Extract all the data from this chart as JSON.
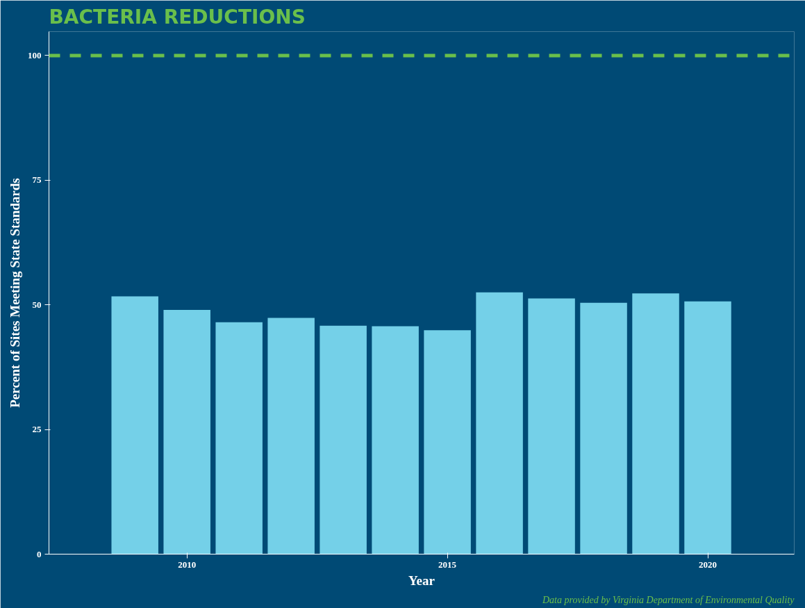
{
  "chart_data": {
    "type": "bar",
    "title": "BACTERIA REDUCTIONS",
    "xlabel": "Year",
    "ylabel": "Percent of Sites Meeting State Standards",
    "x": [
      2009,
      2010,
      2011,
      2012,
      2013,
      2014,
      2015,
      2016,
      2017,
      2018,
      2019,
      2020
    ],
    "values": [
      51.7,
      49.0,
      46.5,
      47.4,
      45.8,
      45.7,
      44.9,
      52.5,
      51.3,
      50.4,
      52.3,
      50.7
    ],
    "color": "#74d0e8",
    "xlim": [
      2007.35,
      2021.66
    ],
    "xticks": [
      2010,
      2015,
      2020
    ],
    "ylim": [
      0,
      104.8
    ],
    "yticks": [
      0,
      25,
      50,
      75,
      100
    ],
    "ref_lines": [
      {
        "axis": "y",
        "value": 100,
        "label": null,
        "color": "#6abf4b",
        "line_style": "dashed"
      }
    ],
    "annotations": [
      "Data provided by Virginia Department of Environmental Quality"
    ],
    "grid": false
  }
}
